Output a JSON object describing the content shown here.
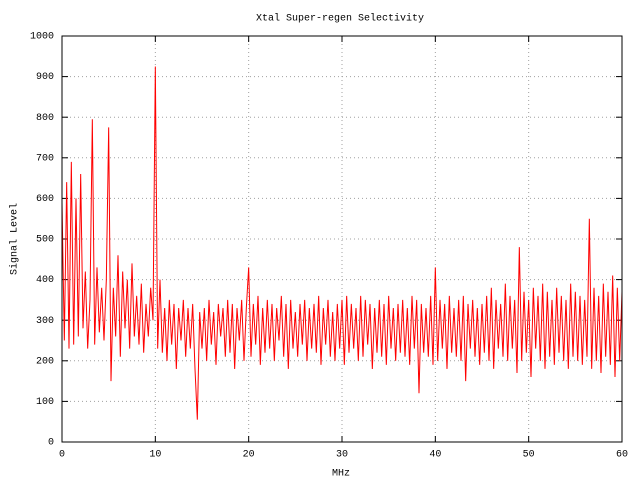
{
  "chart_data": {
    "type": "line",
    "title": "Xtal Super-regen Selectivity",
    "x_label": "MHz",
    "y_label": "Signal Level",
    "xlim": [
      0,
      60
    ],
    "ylim": [
      0,
      1000
    ],
    "xticks": [
      0,
      10,
      20,
      30,
      40,
      50,
      60
    ],
    "yticks": [
      0,
      100,
      200,
      300,
      400,
      500,
      600,
      700,
      800,
      900,
      1000
    ],
    "grid": true,
    "x": [
      0,
      0.25,
      0.5,
      0.75,
      1,
      1.25,
      1.5,
      1.75,
      2,
      2.25,
      2.5,
      2.75,
      3,
      3.25,
      3.5,
      3.75,
      4,
      4.25,
      4.5,
      4.75,
      5,
      5.25,
      5.5,
      5.75,
      6,
      6.25,
      6.5,
      6.75,
      7,
      7.25,
      7.5,
      7.75,
      8,
      8.25,
      8.5,
      8.75,
      9,
      9.25,
      9.5,
      9.75,
      10,
      10.25,
      10.5,
      10.75,
      11,
      11.25,
      11.5,
      11.75,
      12,
      12.25,
      12.5,
      12.75,
      13,
      13.25,
      13.5,
      13.75,
      14,
      14.25,
      14.5,
      14.75,
      15,
      15.25,
      15.5,
      15.75,
      16,
      16.25,
      16.5,
      16.75,
      17,
      17.25,
      17.5,
      17.75,
      18,
      18.25,
      18.5,
      18.75,
      19,
      19.25,
      19.5,
      19.75,
      20,
      20.25,
      20.5,
      20.75,
      21,
      21.25,
      21.5,
      21.75,
      22,
      22.25,
      22.5,
      22.75,
      23,
      23.25,
      23.5,
      23.75,
      24,
      24.25,
      24.5,
      24.75,
      25,
      25.25,
      25.5,
      25.75,
      26,
      26.25,
      26.5,
      26.75,
      27,
      27.25,
      27.5,
      27.75,
      28,
      28.25,
      28.5,
      28.75,
      29,
      29.25,
      29.5,
      29.75,
      30,
      30.25,
      30.5,
      30.75,
      31,
      31.25,
      31.5,
      31.75,
      32,
      32.25,
      32.5,
      32.75,
      33,
      33.25,
      33.5,
      33.75,
      34,
      34.25,
      34.5,
      34.75,
      35,
      35.25,
      35.5,
      35.75,
      36,
      36.25,
      36.5,
      36.75,
      37,
      37.25,
      37.5,
      37.75,
      38,
      38.25,
      38.5,
      38.75,
      39,
      39.25,
      39.5,
      39.75,
      40,
      40.25,
      40.5,
      40.75,
      41,
      41.25,
      41.5,
      41.75,
      42,
      42.25,
      42.5,
      42.75,
      43,
      43.25,
      43.5,
      43.75,
      44,
      44.25,
      44.5,
      44.75,
      45,
      45.25,
      45.5,
      45.75,
      46,
      46.25,
      46.5,
      46.75,
      47,
      47.25,
      47.5,
      47.75,
      48,
      48.25,
      48.5,
      48.75,
      49,
      49.25,
      49.5,
      49.75,
      50,
      50.25,
      50.5,
      50.75,
      51,
      51.25,
      51.5,
      51.75,
      52,
      52.25,
      52.5,
      52.75,
      53,
      53.25,
      53.5,
      53.75,
      54,
      54.25,
      54.5,
      54.75,
      55,
      55.25,
      55.5,
      55.75,
      56,
      56.25,
      56.5,
      56.75,
      57,
      57.25,
      57.5,
      57.75,
      58,
      58.25,
      58.5,
      58.75,
      59,
      59.25,
      59.5,
      59.75,
      60
    ],
    "series": [
      {
        "color": "#ff0000",
        "values": [
          590,
          250,
          640,
          230,
          690,
          240,
          600,
          260,
          660,
          280,
          420,
          230,
          350,
          795,
          240,
          430,
          270,
          380,
          250,
          400,
          775,
          150,
          380,
          260,
          460,
          210,
          420,
          280,
          400,
          230,
          440,
          260,
          360,
          240,
          390,
          220,
          340,
          260,
          380,
          300,
          925,
          230,
          400,
          220,
          330,
          200,
          350,
          240,
          340,
          180,
          330,
          250,
          350,
          210,
          330,
          230,
          340,
          180,
          55,
          320,
          230,
          330,
          200,
          350,
          240,
          320,
          190,
          340,
          260,
          330,
          210,
          350,
          220,
          340,
          180,
          330,
          250,
          350,
          200,
          330,
          430,
          210,
          340,
          240,
          360,
          190,
          330,
          220,
          350,
          230,
          340,
          200,
          330,
          250,
          360,
          210,
          340,
          180,
          350,
          230,
          320,
          210,
          340,
          240,
          350,
          200,
          330,
          230,
          340,
          220,
          360,
          190,
          330,
          240,
          350,
          210,
          320,
          200,
          340,
          230,
          350,
          190,
          360,
          220,
          340,
          230,
          330,
          200,
          360,
          210,
          350,
          240,
          340,
          180,
          330,
          220,
          350,
          210,
          340,
          190,
          360,
          230,
          330,
          200,
          340,
          220,
          350,
          210,
          330,
          190,
          360,
          230,
          350,
          120,
          340,
          220,
          330,
          210,
          360,
          190,
          430,
          200,
          350,
          230,
          340,
          180,
          360,
          220,
          330,
          210,
          350,
          200,
          360,
          150,
          340,
          230,
          350,
          210,
          330,
          190,
          340,
          220,
          360,
          200,
          380,
          180,
          350,
          230,
          340,
          210,
          390,
          200,
          360,
          230,
          350,
          170,
          480,
          200,
          370,
          220,
          350,
          160,
          380,
          230,
          360,
          200,
          390,
          180,
          370,
          210,
          350,
          190,
          380,
          220,
          360,
          200,
          350,
          180,
          390,
          210,
          370,
          200,
          360,
          190,
          350,
          210,
          550,
          180,
          380,
          200,
          360,
          170,
          390,
          210,
          370,
          190,
          410,
          160,
          380,
          200,
          370
        ]
      }
    ]
  }
}
